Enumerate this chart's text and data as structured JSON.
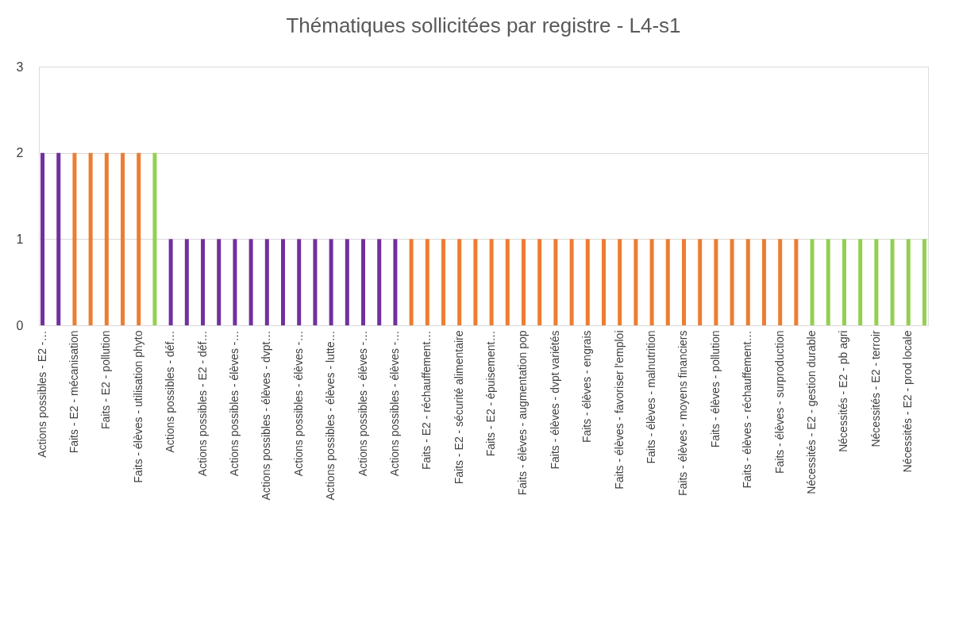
{
  "chart_data": {
    "type": "bar",
    "title": "Thématiques sollicitées par registre - L4-s1",
    "categories": [
      "Actions possibles - E2 -…",
      null,
      "Faits - E2 - mécanisation",
      null,
      "Faits - E2 - pollution",
      null,
      "Faits - élèves - utilisation phyto",
      null,
      "Actions possibles - déf…",
      null,
      "Actions possibles - E2 - déf…",
      null,
      "Actions possibles - élèves -…",
      null,
      "Actions possibles - élèves - dvpt…",
      null,
      "Actions possibles - élèves -…",
      null,
      "Actions possibles - élèves - lutte…",
      null,
      "Actions possibles - élèves -…",
      null,
      "Actions possibles - élèves -…",
      null,
      "Faits - E2 - réchauffement…",
      null,
      "Faits - E2 - sécurité alimentaire",
      null,
      "Faits - E2 - épuisement…",
      null,
      "Faits - élèves - augmentation pop",
      null,
      "Faits - élèves - dvpt variétés",
      null,
      "Faits - élèves - engrais",
      null,
      "Faits - élèves - favoriser l'emploi",
      null,
      "Faits - élèves - malnutrition",
      null,
      "Faits - élèves - moyens financiers",
      null,
      "Faits - élèves - pollution",
      null,
      "Faits - élèves - réchauffement…",
      null,
      "Faits - élèves - surproduction",
      null,
      "Nécessités - E2 - gestion durable",
      null,
      "Nécessités - E2 - pb agri",
      null,
      "Nécessités - E2 - terroir",
      null,
      "Nécessités - E2 - prod locale",
      null
    ],
    "values": [
      2,
      2,
      2,
      2,
      2,
      2,
      2,
      2,
      1,
      1,
      1,
      1,
      1,
      1,
      1,
      1,
      1,
      1,
      1,
      1,
      1,
      1,
      1,
      1,
      1,
      1,
      1,
      1,
      1,
      1,
      1,
      1,
      1,
      1,
      1,
      1,
      1,
      1,
      1,
      1,
      1,
      1,
      1,
      1,
      1,
      1,
      1,
      1,
      1,
      1,
      1,
      1,
      1,
      1,
      1,
      1
    ],
    "colors": [
      "#7030a0",
      "#7030a0",
      "#ed7d31",
      "#ed7d31",
      "#ed7d31",
      "#ed7d31",
      "#ed7d31",
      "#92d050",
      "#7030a0",
      "#7030a0",
      "#7030a0",
      "#7030a0",
      "#7030a0",
      "#7030a0",
      "#7030a0",
      "#7030a0",
      "#7030a0",
      "#7030a0",
      "#7030a0",
      "#7030a0",
      "#7030a0",
      "#7030a0",
      "#7030a0",
      "#ed7d31",
      "#ed7d31",
      "#ed7d31",
      "#ed7d31",
      "#ed7d31",
      "#ed7d31",
      "#ed7d31",
      "#ed7d31",
      "#ed7d31",
      "#ed7d31",
      "#ed7d31",
      "#ed7d31",
      "#ed7d31",
      "#ed7d31",
      "#ed7d31",
      "#ed7d31",
      "#ed7d31",
      "#ed7d31",
      "#ed7d31",
      "#ed7d31",
      "#ed7d31",
      "#ed7d31",
      "#ed7d31",
      "#ed7d31",
      "#ed7d31",
      "#92d050",
      "#92d050",
      "#92d050",
      "#92d050",
      "#92d050",
      "#92d050",
      "#92d050",
      "#92d050"
    ],
    "ylim": [
      0,
      3
    ],
    "yticks": [
      0,
      1,
      2,
      3
    ],
    "grid": "y"
  }
}
